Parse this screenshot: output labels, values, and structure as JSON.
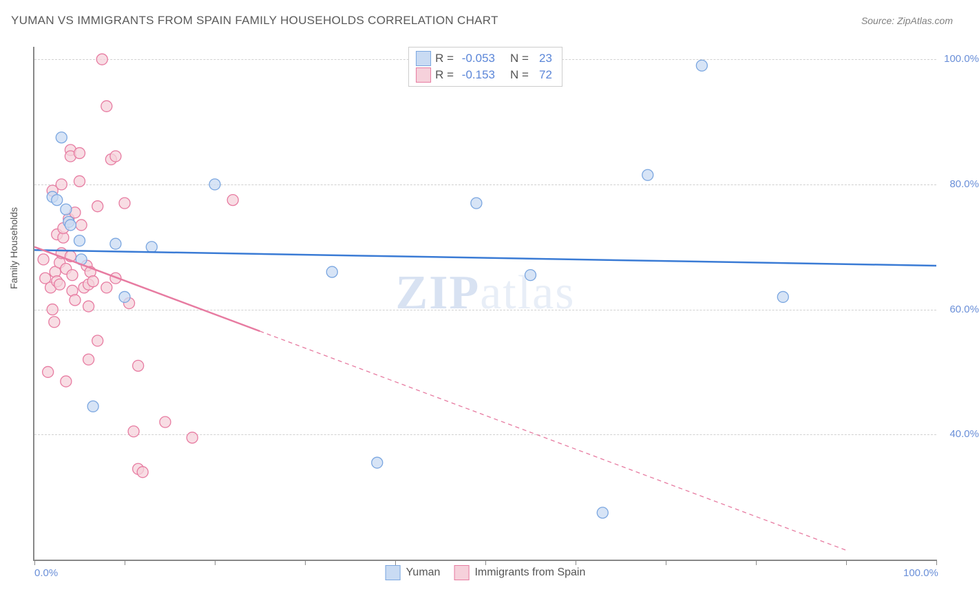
{
  "title": "YUMAN VS IMMIGRANTS FROM SPAIN FAMILY HOUSEHOLDS CORRELATION CHART",
  "source": "Source: ZipAtlas.com",
  "y_axis_label": "Family Households",
  "watermark_bold": "ZIP",
  "watermark_light": "atlas",
  "chart": {
    "type": "scatter",
    "xlim": [
      0,
      100
    ],
    "ylim": [
      20,
      102
    ],
    "x_ticks": [
      0,
      10,
      20,
      30,
      40,
      50,
      60,
      70,
      80,
      90,
      100
    ],
    "x_tick_labels_shown": {
      "0": "0.0%",
      "100": "100.0%"
    },
    "y_gridlines": [
      40,
      60,
      80,
      100
    ],
    "y_tick_labels": {
      "40": "40.0%",
      "60": "60.0%",
      "80": "80.0%",
      "100": "100.0%"
    },
    "background_color": "#ffffff",
    "grid_color": "#d0d0d0",
    "axis_color": "#888888",
    "marker_radius": 8,
    "marker_stroke_width": 1.3,
    "trend_line_width": 2.5
  },
  "series": [
    {
      "name": "Yuman",
      "color_fill": "#c9dbf3",
      "color_stroke": "#7aa6e0",
      "r_value": "-0.053",
      "n_value": "23",
      "trend": {
        "x1": 0,
        "y1": 69.5,
        "x2": 100,
        "y2": 67.0,
        "color": "#3a7bd5",
        "dash": "none"
      },
      "points": [
        [
          2.0,
          78.0
        ],
        [
          2.5,
          77.5
        ],
        [
          3.0,
          87.5
        ],
        [
          3.5,
          76.0
        ],
        [
          3.8,
          74.0
        ],
        [
          4.0,
          73.5
        ],
        [
          5.0,
          71.0
        ],
        [
          5.2,
          68.0
        ],
        [
          6.5,
          44.5
        ],
        [
          9.0,
          70.5
        ],
        [
          10.0,
          62.0
        ],
        [
          13.0,
          70.0
        ],
        [
          20.0,
          80.0
        ],
        [
          33.0,
          66.0
        ],
        [
          38.0,
          35.5
        ],
        [
          49.0,
          77.0
        ],
        [
          55.0,
          65.5
        ],
        [
          63.0,
          27.5
        ],
        [
          68.0,
          81.5
        ],
        [
          74.0,
          99.0
        ],
        [
          83.0,
          62.0
        ]
      ]
    },
    {
      "name": "Immigrants from Spain",
      "color_fill": "#f6d1db",
      "color_stroke": "#e77ba1",
      "r_value": "-0.153",
      "n_value": "72",
      "trend": {
        "x1": 0,
        "y1": 70.0,
        "x2": 90,
        "y2": 21.5,
        "color": "#e77ba1",
        "dash": "6,5",
        "solid_until": 25
      },
      "points": [
        [
          1.0,
          68.0
        ],
        [
          1.2,
          65.0
        ],
        [
          1.5,
          50.0
        ],
        [
          1.8,
          63.5
        ],
        [
          2.0,
          79.0
        ],
        [
          2.0,
          60.0
        ],
        [
          2.2,
          58.0
        ],
        [
          2.3,
          66.0
        ],
        [
          2.5,
          64.5
        ],
        [
          2.5,
          72.0
        ],
        [
          2.8,
          64.0
        ],
        [
          2.8,
          67.5
        ],
        [
          3.0,
          80.0
        ],
        [
          3.0,
          69.0
        ],
        [
          3.2,
          71.5
        ],
        [
          3.2,
          73.0
        ],
        [
          3.5,
          66.5
        ],
        [
          3.5,
          48.5
        ],
        [
          3.8,
          74.5
        ],
        [
          4.0,
          85.5
        ],
        [
          4.0,
          84.5
        ],
        [
          4.0,
          68.5
        ],
        [
          4.2,
          65.5
        ],
        [
          4.2,
          63.0
        ],
        [
          4.5,
          75.5
        ],
        [
          4.5,
          61.5
        ],
        [
          5.0,
          85.0
        ],
        [
          5.0,
          80.5
        ],
        [
          5.2,
          73.5
        ],
        [
          5.5,
          63.5
        ],
        [
          5.8,
          67.0
        ],
        [
          6.0,
          64.0
        ],
        [
          6.0,
          60.5
        ],
        [
          6.0,
          52.0
        ],
        [
          6.2,
          66.0
        ],
        [
          6.5,
          64.5
        ],
        [
          7.0,
          76.5
        ],
        [
          7.0,
          55.0
        ],
        [
          7.5,
          100.0
        ],
        [
          8.0,
          63.5
        ],
        [
          8.0,
          92.5
        ],
        [
          8.5,
          84.0
        ],
        [
          9.0,
          84.5
        ],
        [
          9.0,
          65.0
        ],
        [
          10.0,
          77.0
        ],
        [
          10.5,
          61.0
        ],
        [
          11.0,
          40.5
        ],
        [
          11.5,
          51.0
        ],
        [
          11.5,
          34.5
        ],
        [
          12.0,
          34.0
        ],
        [
          14.5,
          42.0
        ],
        [
          17.5,
          39.5
        ],
        [
          22.0,
          77.5
        ]
      ]
    }
  ],
  "legend_top": {
    "r_label": "R =",
    "n_label": "N ="
  },
  "legend_bottom": [
    {
      "label": "Yuman",
      "fill": "#c9dbf3",
      "stroke": "#7aa6e0"
    },
    {
      "label": "Immigrants from Spain",
      "fill": "#f6d1db",
      "stroke": "#e77ba1"
    }
  ]
}
